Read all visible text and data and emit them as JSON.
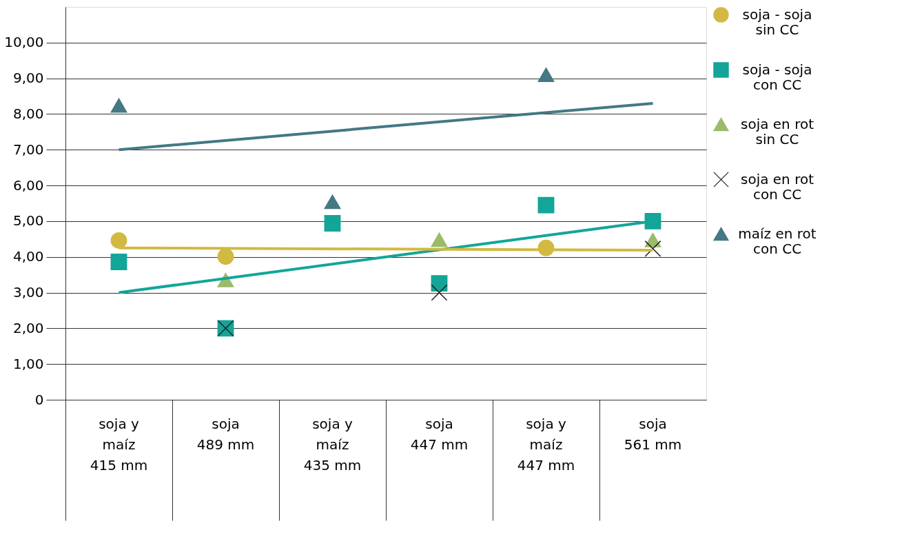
{
  "chart_data": {
    "type": "scatter",
    "categories": [
      "soja y\nmaíz\n\n415 mm",
      "soja\n\n489 mm",
      "soja y\nmaíz\n\n435 mm",
      "soja\n\n447 mm",
      "soja y\nmaíz\n\n447 mm",
      "soja\n\n561 mm"
    ],
    "series": [
      {
        "name": "soja - soja\nsin CC",
        "color": "#d2b941",
        "marker": "circle",
        "values": [
          4.46,
          4.01,
          null,
          null,
          4.25,
          null
        ]
      },
      {
        "name": "soja - soja\ncon CC",
        "color": "#13a598",
        "marker": "square",
        "values": [
          3.86,
          2.0,
          4.94,
          3.26,
          5.45,
          5.0
        ]
      },
      {
        "name": "soja en rot\nsin CC",
        "color": "#9bbb6a",
        "marker": "triangle",
        "values": [
          null,
          3.35,
          null,
          4.48,
          null,
          4.47
        ]
      },
      {
        "name": "soja en rot\ncon CC",
        "color": "#222222",
        "marker": "cross",
        "values": [
          null,
          2.0,
          null,
          3.0,
          null,
          4.23
        ]
      },
      {
        "name": "maíz en rot\ncon CC",
        "color": "#447884",
        "marker": "triangle",
        "values": [
          8.24,
          null,
          5.54,
          null,
          9.1,
          null
        ]
      },
      {
        "type": "line",
        "color": "#447884",
        "x": [
          "soja y\nmaíz\n\n415 mm",
          "soja\n\n561 mm"
        ],
        "values": [
          7.0,
          8.3
        ]
      },
      {
        "type": "line",
        "color": "#13a598",
        "x": [
          "soja y\nmaíz\n\n415 mm",
          "soja\n\n561 mm"
        ],
        "values": [
          3.0,
          5.0
        ]
      },
      {
        "type": "line",
        "color": "#d2b941",
        "x": [
          "soja y\nmaíz\n\n415 mm",
          "soja\n\n561 mm"
        ],
        "values": [
          4.25,
          4.19
        ]
      }
    ],
    "ylim": [
      0,
      11
    ],
    "yticks": [
      0,
      {
        "value": 1,
        "label": "1,00"
      },
      {
        "value": 2,
        "label": "2,00"
      },
      {
        "value": 3,
        "label": "3,00"
      },
      {
        "value": 4,
        "label": "4,00"
      },
      {
        "value": 5,
        "label": "5,00"
      },
      {
        "value": 6,
        "label": "6,00"
      },
      {
        "value": 7,
        "label": "7,00"
      },
      {
        "value": 8,
        "label": "8,00"
      },
      {
        "value": 9,
        "label": "9,00"
      },
      {
        "value": 10,
        "label": "10,00"
      }
    ],
    "grid": "y",
    "legend": "right"
  }
}
